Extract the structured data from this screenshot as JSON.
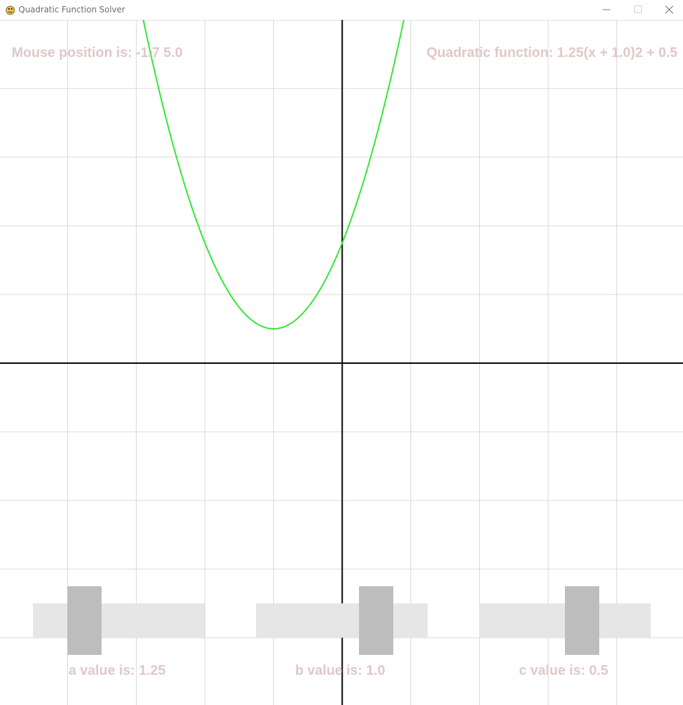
{
  "window": {
    "title": "Quadratic Function Solver",
    "icon": "pygame-snake-icon",
    "controls": [
      "minimize-icon",
      "maximize-icon",
      "close-icon"
    ]
  },
  "overlay": {
    "mouse_position": "Mouse position is: -1.7  5.0",
    "quadratic_function": "Quadratic function: 1.25(x + 1.0)2 + 0.5"
  },
  "sliders": {
    "a": {
      "label": "a value is: 1.25",
      "value": 1.25,
      "fraction": 0.2
    },
    "b": {
      "label": "b value is: 1.0",
      "value": 1.0,
      "fraction": 0.7
    },
    "c": {
      "label": "c value is: 0.5",
      "value": 0.5,
      "fraction": 0.5
    }
  },
  "colors": {
    "curve": "#33e633",
    "grid": "#d9d9d9",
    "axes": "#000000",
    "label": "#e0c8c8",
    "slider_track": "#e6e6e6",
    "slider_handle": "#bdbdbd"
  },
  "chart_data": {
    "type": "line",
    "function": {
      "a": 1.25,
      "h": -1.0,
      "k": 0.5
    },
    "xlim": [
      -5,
      5
    ],
    "ylim": [
      -5,
      5
    ],
    "grid": true,
    "grid_step": 1
  }
}
